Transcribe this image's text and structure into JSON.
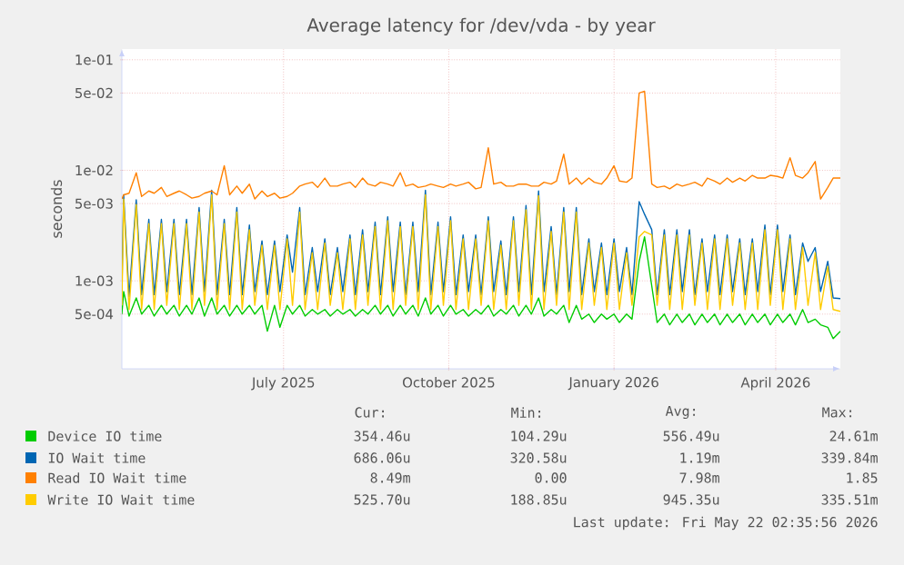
{
  "chart_data": {
    "type": "line",
    "title": "Average latency for /dev/vda - by year",
    "ylabel": "seconds",
    "log": "y",
    "grid": true,
    "legend": "bottom",
    "xlim": [
      "2025-04-17",
      "2026-05-22"
    ],
    "xticks": [
      {
        "value": "2025-07-16",
        "label": "July 2025"
      },
      {
        "value": "2025-10-16",
        "label": "October 2025"
      },
      {
        "value": "2026-01-16",
        "label": "January 2026"
      },
      {
        "value": "2026-04-16",
        "label": "April 2026"
      }
    ],
    "ylim": [
      0.00016,
      0.125
    ],
    "yticks": [
      {
        "value": 0.0005,
        "label": "5e-04"
      },
      {
        "value": 0.001,
        "label": "1e-03"
      },
      {
        "value": 0.005,
        "label": "5e-03"
      },
      {
        "value": 0.01,
        "label": "1e-02"
      },
      {
        "value": 0.05,
        "label": "5e-02"
      },
      {
        "value": 0.1,
        "label": "1e-01"
      }
    ],
    "x": [
      "2025-04-17",
      "2025-04-18",
      "2025-04-21",
      "2025-04-25",
      "2025-04-28",
      "2025-05-02",
      "2025-05-05",
      "2025-05-09",
      "2025-05-12",
      "2025-05-16",
      "2025-05-19",
      "2025-05-23",
      "2025-05-26",
      "2025-05-30",
      "2025-06-02",
      "2025-06-06",
      "2025-06-09",
      "2025-06-13",
      "2025-06-16",
      "2025-06-20",
      "2025-06-23",
      "2025-06-27",
      "2025-06-30",
      "2025-07-04",
      "2025-07-07",
      "2025-07-11",
      "2025-07-14",
      "2025-07-18",
      "2025-07-21",
      "2025-07-25",
      "2025-07-28",
      "2025-08-01",
      "2025-08-04",
      "2025-08-08",
      "2025-08-11",
      "2025-08-15",
      "2025-08-18",
      "2025-08-22",
      "2025-08-25",
      "2025-08-29",
      "2025-09-01",
      "2025-09-05",
      "2025-09-08",
      "2025-09-12",
      "2025-09-15",
      "2025-09-19",
      "2025-09-22",
      "2025-09-26",
      "2025-09-29",
      "2025-10-03",
      "2025-10-06",
      "2025-10-10",
      "2025-10-13",
      "2025-10-17",
      "2025-10-20",
      "2025-10-24",
      "2025-10-27",
      "2025-10-31",
      "2025-11-03",
      "2025-11-07",
      "2025-11-10",
      "2025-11-14",
      "2025-11-17",
      "2025-11-21",
      "2025-11-24",
      "2025-11-28",
      "2025-12-01",
      "2025-12-05",
      "2025-12-08",
      "2025-12-12",
      "2025-12-15",
      "2025-12-19",
      "2025-12-22",
      "2025-12-26",
      "2025-12-29",
      "2026-01-02",
      "2026-01-05",
      "2026-01-09",
      "2026-01-12",
      "2026-01-16",
      "2026-01-19",
      "2026-01-23",
      "2026-01-26",
      "2026-01-30",
      "2026-02-02",
      "2026-02-06",
      "2026-02-09",
      "2026-02-13",
      "2026-02-16",
      "2026-02-20",
      "2026-02-23",
      "2026-02-27",
      "2026-03-02",
      "2026-03-06",
      "2026-03-09",
      "2026-03-13",
      "2026-03-16",
      "2026-03-20",
      "2026-03-23",
      "2026-03-27",
      "2026-03-30",
      "2026-04-03",
      "2026-04-06",
      "2026-04-10",
      "2026-04-13",
      "2026-04-17",
      "2026-04-20",
      "2026-04-24",
      "2026-04-27",
      "2026-05-01",
      "2026-05-04",
      "2026-05-08",
      "2026-05-11",
      "2026-05-15",
      "2026-05-18",
      "2026-05-22"
    ],
    "series": [
      {
        "name": "Device IO time",
        "color": "#00cc00",
        "values": [
          0.0005,
          0.0008,
          0.00048,
          0.0007,
          0.0005,
          0.0006,
          0.00048,
          0.0006,
          0.0005,
          0.0006,
          0.00048,
          0.0006,
          0.0005,
          0.0007,
          0.00048,
          0.0007,
          0.0005,
          0.0006,
          0.00048,
          0.0006,
          0.0005,
          0.0006,
          0.0005,
          0.0006,
          0.00035,
          0.0006,
          0.00038,
          0.0006,
          0.0005,
          0.0006,
          0.00048,
          0.00055,
          0.0005,
          0.00055,
          0.00048,
          0.00055,
          0.0005,
          0.00055,
          0.00048,
          0.00055,
          0.0005,
          0.0006,
          0.0005,
          0.0006,
          0.00048,
          0.0006,
          0.0005,
          0.0006,
          0.00048,
          0.0007,
          0.0005,
          0.0006,
          0.00048,
          0.0006,
          0.0005,
          0.00055,
          0.00048,
          0.00055,
          0.0005,
          0.0006,
          0.00048,
          0.00055,
          0.0005,
          0.0006,
          0.00048,
          0.0006,
          0.0005,
          0.0007,
          0.00048,
          0.00055,
          0.0005,
          0.0006,
          0.00042,
          0.0006,
          0.00045,
          0.0005,
          0.00042,
          0.0005,
          0.00045,
          0.0005,
          0.00042,
          0.0005,
          0.00045,
          0.0015,
          0.0025,
          0.0009,
          0.00042,
          0.0005,
          0.0004,
          0.0005,
          0.00042,
          0.0005,
          0.0004,
          0.0005,
          0.00042,
          0.0005,
          0.0004,
          0.0005,
          0.00042,
          0.0005,
          0.0004,
          0.0005,
          0.00042,
          0.0005,
          0.0004,
          0.0005,
          0.00042,
          0.0005,
          0.0004,
          0.00055,
          0.00042,
          0.00045,
          0.0004,
          0.00038,
          0.0003,
          0.00035
        ]
      },
      {
        "name": "IO Wait time",
        "color": "#0066b3",
        "values": [
          0.0008,
          0.006,
          0.00072,
          0.0054,
          0.00075,
          0.0036,
          0.00075,
          0.0036,
          0.0008,
          0.0036,
          0.00075,
          0.0036,
          0.00075,
          0.0046,
          0.0008,
          0.0066,
          0.00075,
          0.0036,
          0.00075,
          0.0046,
          0.00075,
          0.0032,
          0.0008,
          0.0023,
          0.00075,
          0.0023,
          0.0008,
          0.0026,
          0.0012,
          0.0046,
          0.00075,
          0.002,
          0.0008,
          0.0024,
          0.00075,
          0.002,
          0.0008,
          0.0026,
          0.00075,
          0.0029,
          0.0008,
          0.0034,
          0.00075,
          0.0038,
          0.0008,
          0.0034,
          0.00075,
          0.0034,
          0.0008,
          0.0066,
          0.00075,
          0.0034,
          0.0008,
          0.0038,
          0.00075,
          0.0026,
          0.0008,
          0.0026,
          0.00075,
          0.0038,
          0.0008,
          0.0023,
          0.00075,
          0.0038,
          0.0008,
          0.0048,
          0.00075,
          0.0065,
          0.0008,
          0.0031,
          0.00075,
          0.0046,
          0.0008,
          0.0046,
          0.00075,
          0.0024,
          0.0008,
          0.0022,
          0.00075,
          0.0024,
          0.0008,
          0.002,
          0.00075,
          0.0052,
          0.004,
          0.0029,
          0.00075,
          0.0029,
          0.00075,
          0.0029,
          0.0008,
          0.0029,
          0.00075,
          0.0024,
          0.0008,
          0.0026,
          0.00075,
          0.0026,
          0.0008,
          0.0024,
          0.00075,
          0.0024,
          0.0008,
          0.0032,
          0.00075,
          0.0032,
          0.0008,
          0.0026,
          0.00075,
          0.0022,
          0.0015,
          0.002,
          0.0008,
          0.0015,
          0.0007,
          0.00069
        ]
      },
      {
        "name": "Read IO Wait time",
        "color": "#ff8000",
        "values": [
          0.0055,
          0.006,
          0.0062,
          0.0095,
          0.0058,
          0.0065,
          0.0062,
          0.007,
          0.0058,
          0.0062,
          0.0065,
          0.006,
          0.0056,
          0.0058,
          0.0062,
          0.0065,
          0.006,
          0.011,
          0.006,
          0.0072,
          0.0062,
          0.0075,
          0.0055,
          0.0065,
          0.0058,
          0.0062,
          0.0056,
          0.0058,
          0.0062,
          0.0072,
          0.0075,
          0.0078,
          0.007,
          0.0085,
          0.0072,
          0.0072,
          0.0075,
          0.0078,
          0.007,
          0.0085,
          0.0075,
          0.0072,
          0.0078,
          0.0075,
          0.0072,
          0.0095,
          0.0072,
          0.0075,
          0.007,
          0.0072,
          0.0075,
          0.0072,
          0.007,
          0.0075,
          0.0072,
          0.0075,
          0.0078,
          0.0068,
          0.007,
          0.016,
          0.0075,
          0.0078,
          0.0072,
          0.0072,
          0.0075,
          0.0075,
          0.0072,
          0.0072,
          0.0078,
          0.0075,
          0.008,
          0.014,
          0.0075,
          0.0085,
          0.0075,
          0.0085,
          0.0078,
          0.0075,
          0.0085,
          0.011,
          0.008,
          0.0078,
          0.0085,
          0.05,
          0.052,
          0.0075,
          0.007,
          0.0072,
          0.0068,
          0.0075,
          0.0072,
          0.0075,
          0.0078,
          0.0072,
          0.0085,
          0.008,
          0.0075,
          0.0085,
          0.0078,
          0.0085,
          0.008,
          0.009,
          0.0085,
          0.0085,
          0.009,
          0.0088,
          0.0085,
          0.013,
          0.009,
          0.0085,
          0.0095,
          0.012,
          0.0055,
          0.007,
          0.0085,
          0.0085
        ]
      },
      {
        "name": "Write IO Wait time",
        "color": "#ffcc00",
        "values": [
          0.0006,
          0.0055,
          0.00055,
          0.0049,
          0.00055,
          0.0033,
          0.00055,
          0.0033,
          0.0006,
          0.0033,
          0.00055,
          0.0033,
          0.00055,
          0.0042,
          0.0006,
          0.006,
          0.00055,
          0.0033,
          0.00055,
          0.0042,
          0.00055,
          0.0029,
          0.0006,
          0.0021,
          0.00055,
          0.0021,
          0.00055,
          0.0024,
          0.0006,
          0.0042,
          0.00055,
          0.0018,
          0.00055,
          0.0022,
          0.0006,
          0.0018,
          0.00055,
          0.0024,
          0.00055,
          0.0026,
          0.0006,
          0.0031,
          0.00055,
          0.0035,
          0.00055,
          0.0031,
          0.0006,
          0.0031,
          0.00055,
          0.006,
          0.00055,
          0.0031,
          0.0006,
          0.0035,
          0.00055,
          0.0024,
          0.00055,
          0.0024,
          0.0006,
          0.0035,
          0.00055,
          0.0021,
          0.00055,
          0.0035,
          0.0006,
          0.0044,
          0.00055,
          0.0059,
          0.00055,
          0.0028,
          0.0006,
          0.0042,
          0.00055,
          0.0042,
          0.00055,
          0.0022,
          0.0006,
          0.002,
          0.00055,
          0.0022,
          0.00055,
          0.0018,
          0.0006,
          0.0025,
          0.0028,
          0.0026,
          0.0006,
          0.0026,
          0.00055,
          0.0026,
          0.00055,
          0.0026,
          0.0006,
          0.0022,
          0.00055,
          0.0024,
          0.00055,
          0.0024,
          0.0006,
          0.0022,
          0.00055,
          0.0022,
          0.00055,
          0.0029,
          0.0006,
          0.0029,
          0.00055,
          0.0024,
          0.00055,
          0.002,
          0.0006,
          0.0018,
          0.00055,
          0.00135,
          0.00055,
          0.00053
        ]
      }
    ],
    "annotations": [
      "Cur:",
      "Min:",
      "Avg:",
      "Max:",
      "354.46u",
      "104.29u",
      "556.49u",
      "24.61m",
      "686.06u",
      "320.58u",
      "1.19m",
      "339.84m",
      "8.49m",
      "0.00",
      "7.98m",
      "1.85",
      "525.70u",
      "188.85u",
      "945.35u",
      "335.51m",
      "Last update: Fri May 22 02:35:56 2026"
    ]
  }
}
